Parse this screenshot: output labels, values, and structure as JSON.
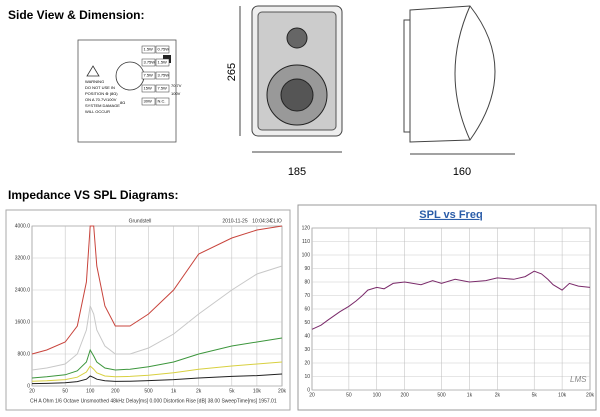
{
  "header": {
    "title_dimension": "Side View & Dimension:",
    "title_diagrams": "Impedance VS SPL Diagrams:"
  },
  "dimensions": {
    "height": "265",
    "width": "185",
    "depth": "160"
  },
  "panel": {
    "warning": [
      "WARNING",
      "DO NOT USE IN",
      "POSITION ⊗ (8Ω)",
      "ON A 70.7V/100V",
      "SYSTEM DAMAGE",
      "WILL OCCUR"
    ],
    "taps_left": [
      "1.5W",
      "3.75W",
      "7.5W",
      "15W",
      "30W"
    ],
    "taps_right": [
      "0.75W",
      "1.5W",
      "3.75W",
      "7.5W",
      "N.C."
    ],
    "voltages": [
      "70.7V",
      "100V"
    ],
    "impedance": "8Ω"
  },
  "chart_data": [
    {
      "type": "line",
      "top_labels": [
        "Grundstell",
        "2010-11-25",
        "10:04:34",
        "CLIO"
      ],
      "footer": "CH A Ohm  1/6 Octave  Unsmoothed  48kHz  Delay[ms] 0.000  Distortion Rise [dB] 38.00  SweepTime[ms] 1957.01",
      "xlog": true,
      "grid": true,
      "x": [
        20,
        30,
        50,
        70,
        90,
        100,
        110,
        120,
        150,
        200,
        300,
        500,
        1000,
        2000,
        5000,
        10000,
        20000
      ],
      "series": [
        {
          "color": "#c8443c",
          "values": [
            800,
            900,
            1100,
            1500,
            2600,
            4000,
            4000,
            3000,
            2000,
            1500,
            1500,
            1800,
            2400,
            3300,
            3700,
            3900,
            4000
          ]
        },
        {
          "color": "#c8c8c8",
          "values": [
            400,
            450,
            550,
            800,
            1400,
            2000,
            1800,
            1400,
            1000,
            800,
            800,
            950,
            1300,
            1800,
            2400,
            2800,
            3000
          ]
        },
        {
          "color": "#3c963c",
          "values": [
            200,
            230,
            280,
            380,
            600,
            900,
            750,
            600,
            450,
            400,
            420,
            480,
            600,
            800,
            1000,
            1100,
            1200
          ]
        },
        {
          "color": "#d8d040",
          "values": [
            120,
            130,
            160,
            220,
            350,
            500,
            420,
            330,
            250,
            230,
            240,
            270,
            330,
            420,
            500,
            550,
            600
          ]
        },
        {
          "color": "#202020",
          "values": [
            60,
            65,
            80,
            110,
            170,
            250,
            210,
            170,
            130,
            115,
            120,
            135,
            160,
            200,
            240,
            260,
            300
          ]
        }
      ],
      "xlim": [
        20,
        20000
      ],
      "xticks": [
        20,
        50,
        100,
        200,
        500,
        {
          "value": 1000,
          "label": "1k"
        },
        {
          "value": 2000,
          "label": "2k"
        },
        {
          "value": 5000,
          "label": "5k"
        },
        {
          "value": 10000,
          "label": "10k"
        },
        {
          "value": 20000,
          "label": "20k"
        }
      ],
      "ylim": [
        0,
        4000
      ],
      "yticks": [
        0,
        {
          "value": 800,
          "label": "800.0"
        },
        {
          "value": 1600,
          "label": "1600.0"
        },
        {
          "value": 2400,
          "label": "2400.0"
        },
        {
          "value": 3200,
          "label": "3200.0"
        },
        {
          "value": 4000,
          "label": "4000.0"
        }
      ]
    },
    {
      "type": "line",
      "title": "SPL vs Freq",
      "watermark": "LMS",
      "xlog": true,
      "grid": true,
      "x": [
        20,
        25,
        30,
        40,
        50,
        60,
        70,
        80,
        100,
        120,
        150,
        200,
        300,
        400,
        500,
        700,
        1000,
        1500,
        2000,
        3000,
        4000,
        5000,
        6000,
        7000,
        8000,
        10000,
        12000,
        15000,
        20000
      ],
      "series": [
        {
          "color": "#7a2a6a",
          "values": [
            45,
            48,
            52,
            58,
            62,
            66,
            70,
            74,
            76,
            75,
            79,
            80,
            78,
            81,
            79,
            82,
            80,
            81,
            83,
            82,
            84,
            88,
            86,
            82,
            78,
            74,
            79,
            77,
            76
          ]
        }
      ],
      "xlim": [
        20,
        20000
      ],
      "xticks": [
        20,
        50,
        100,
        200,
        500,
        {
          "value": 1000,
          "label": "1k"
        },
        {
          "value": 2000,
          "label": "2k"
        },
        {
          "value": 5000,
          "label": "5k"
        },
        {
          "value": 10000,
          "label": "10k"
        },
        {
          "value": 20000,
          "label": "20k"
        }
      ],
      "ylim": [
        0,
        120
      ],
      "yticks": [
        0,
        10,
        20,
        30,
        40,
        50,
        60,
        70,
        80,
        90,
        100,
        110,
        120
      ]
    }
  ]
}
